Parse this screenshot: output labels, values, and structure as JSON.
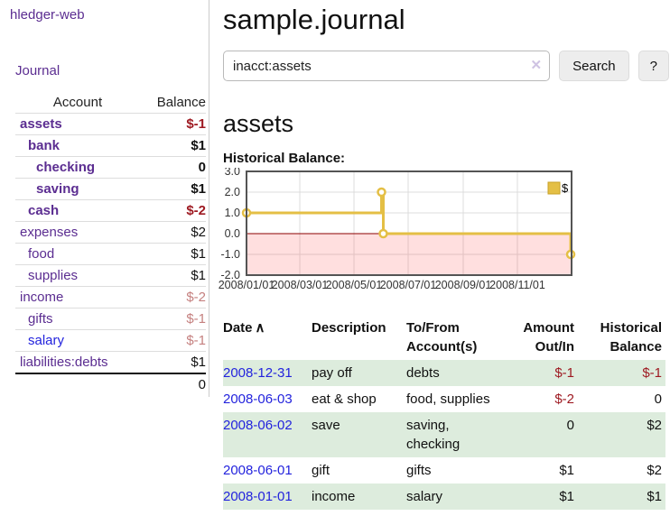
{
  "colors": {
    "link_purple": "#5b2d91",
    "link_blue": "#2323dd",
    "negative_red": "#9e1a22",
    "negative_muted": "#c5807f",
    "row_stripe_green": "#ddecdd",
    "chart_gold": "#e4bf45"
  },
  "sidebar": {
    "brand": "hledger-web",
    "journal_link": "Journal",
    "accounts_table": {
      "headers": [
        "Account",
        "Balance"
      ],
      "rows": [
        {
          "name": "assets",
          "indent": 1,
          "bold": true,
          "balance": "$-1",
          "balance_style": "neg"
        },
        {
          "name": "bank",
          "indent": 2,
          "bold": true,
          "balance": "$1",
          "balance_style": ""
        },
        {
          "name": "checking",
          "indent": 3,
          "bold": true,
          "balance": "0",
          "balance_style": ""
        },
        {
          "name": "saving",
          "indent": 3,
          "bold": true,
          "balance": "$1",
          "balance_style": ""
        },
        {
          "name": "cash",
          "indent": 2,
          "bold": true,
          "balance": "$-2",
          "balance_style": "neg"
        },
        {
          "name": "expenses",
          "indent": 1,
          "bold": false,
          "balance": "$2",
          "balance_style": ""
        },
        {
          "name": "food",
          "indent": 2,
          "bold": false,
          "balance": "$1",
          "balance_style": ""
        },
        {
          "name": "supplies",
          "indent": 2,
          "bold": false,
          "balance": "$1",
          "balance_style": ""
        },
        {
          "name": "income",
          "indent": 1,
          "bold": false,
          "balance": "$-2",
          "balance_style": "neg-muted"
        },
        {
          "name": "gifts",
          "indent": 2,
          "bold": false,
          "balance": "$-1",
          "balance_style": "neg-muted"
        },
        {
          "name": "salary",
          "indent": 2,
          "bold": false,
          "link_blue": true,
          "balance": "$-1",
          "balance_style": "neg-muted"
        },
        {
          "name": "liabilities:debts",
          "indent": 1,
          "bold": false,
          "balance": "$1",
          "balance_style": ""
        }
      ],
      "total": "0"
    }
  },
  "header": {
    "title": "sample.journal"
  },
  "search": {
    "value": "inacct:assets",
    "clear_icon": "✕",
    "button_label": "Search",
    "help_label": "?"
  },
  "account_page": {
    "heading": "assets",
    "chart_caption": "Historical Balance:"
  },
  "chart_data": {
    "type": "line",
    "step": true,
    "title": "Historical Balance:",
    "series": [
      {
        "name": "$",
        "color": "#e4bf45",
        "points": [
          {
            "x": "2008-01-01",
            "y": 1
          },
          {
            "x": "2008-06-01",
            "y": 2
          },
          {
            "x": "2008-06-03",
            "y": 0
          },
          {
            "x": "2008-12-31",
            "y": -1
          }
        ]
      }
    ],
    "x_range": [
      "2008-01-01",
      "2009-01-01"
    ],
    "y_range": [
      -2,
      3
    ],
    "y_ticks": [
      "3.0",
      "2.0",
      "1.0",
      "0.0",
      "-1.0",
      "-2.0"
    ],
    "x_ticks": [
      {
        "x": "2008-01-01",
        "label": "2008/01/01"
      },
      {
        "x": "2008-03-01",
        "label": "2008/03/01"
      },
      {
        "x": "2008-05-01",
        "label": "2008/05/01"
      },
      {
        "x": "2008-07-01",
        "label": "2008/07/01"
      },
      {
        "x": "2008-09-01",
        "label": "2008/09/01"
      },
      {
        "x": "2008-11-01",
        "label": "2008/11/01"
      }
    ],
    "legend": [
      {
        "label": "$",
        "color": "#e4bf45",
        "border": "#c9a227"
      }
    ],
    "legend_position": "top-right",
    "grid": true,
    "grid_color": "#dcdcdc",
    "border_color": "#545454",
    "negative_region_fill": "rgba(255,80,80,0.18)",
    "zero_line_color": "#8b0000"
  },
  "register_table": {
    "headers": {
      "date": "Date",
      "sort_indicator": "∧",
      "description": "Description",
      "accounts": "To/From Account(s)",
      "amount": "Amount Out/In",
      "balance": "Historical Balance"
    },
    "rows": [
      {
        "date": "2008-12-31",
        "description": "pay off",
        "accounts": "debts",
        "amount": "$-1",
        "amount_neg": true,
        "balance": "$-1",
        "balance_neg": true
      },
      {
        "date": "2008-06-03",
        "description": "eat & shop",
        "accounts": "food, supplies",
        "amount": "$-2",
        "amount_neg": true,
        "balance": "0",
        "balance_neg": false
      },
      {
        "date": "2008-06-02",
        "description": "save",
        "accounts": "saving, checking",
        "amount": "0",
        "amount_neg": false,
        "balance": "$2",
        "balance_neg": false
      },
      {
        "date": "2008-06-01",
        "description": "gift",
        "accounts": "gifts",
        "amount": "$1",
        "amount_neg": false,
        "balance": "$2",
        "balance_neg": false
      },
      {
        "date": "2008-01-01",
        "description": "income",
        "accounts": "salary",
        "amount": "$1",
        "amount_neg": false,
        "balance": "$1",
        "balance_neg": false
      }
    ]
  }
}
